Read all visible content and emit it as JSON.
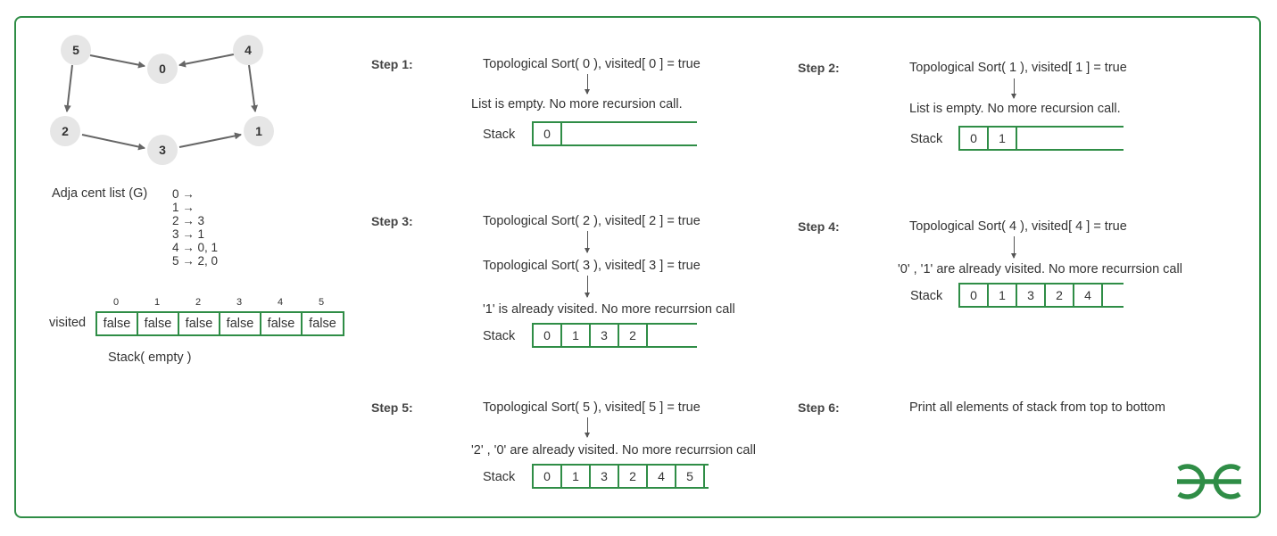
{
  "graph": {
    "nodes": [
      "5",
      "0",
      "4",
      "2",
      "3",
      "1"
    ],
    "node_color": "#e6e6e6",
    "edge_color": "#666666"
  },
  "adjacency": {
    "label": "Adja cent list  (G)",
    "rows": [
      "0 →",
      "1 →",
      "2 → 3",
      "3 → 1",
      "4 → 0, 1",
      "5 → 2, 0"
    ]
  },
  "visited": {
    "label": "visited",
    "indices": [
      "0",
      "1",
      "2",
      "3",
      "4",
      "5"
    ],
    "values": [
      "false",
      "false",
      "false",
      "false",
      "false",
      "false"
    ],
    "stack_label": "Stack( empty )"
  },
  "stack_word": "Stack",
  "steps": [
    {
      "label": "Step 1:",
      "lines": [
        "Topological Sort( 0 ), visited[ 0 ] = true",
        "List is empty. No more recursion call."
      ],
      "stack": [
        "0"
      ]
    },
    {
      "label": "Step 2:",
      "lines": [
        "Topological Sort( 1 ), visited[ 1 ] = true",
        "List is empty. No more recursion call."
      ],
      "stack": [
        "0",
        "1"
      ]
    },
    {
      "label": "Step 3:",
      "lines": [
        "Topological Sort( 2 ), visited[ 2 ] = true",
        "Topological Sort( 3 ), visited[ 3 ] = true",
        "'1' is already visited. No more recurrsion call"
      ],
      "stack": [
        "0",
        "1",
        "3",
        "2"
      ]
    },
    {
      "label": "Step 4:",
      "lines": [
        "Topological Sort( 4 ), visited[ 4 ] = true",
        "'0' , '1' are already visited. No more recurrsion call"
      ],
      "stack": [
        "0",
        "1",
        "3",
        "2",
        "4"
      ]
    },
    {
      "label": "Step 5:",
      "lines": [
        "Topological Sort( 5 ), visited[ 5 ] = true",
        "'2' , '0' are already visited. No more recurrsion call"
      ],
      "stack": [
        "0",
        "1",
        "3",
        "2",
        "4",
        "5"
      ]
    },
    {
      "label": "Step 6:",
      "lines": [
        "Print all elements of stack from top to bottom"
      ],
      "stack": []
    }
  ],
  "brand": {
    "logo_text": "GfG",
    "color": "#2f8d46"
  }
}
